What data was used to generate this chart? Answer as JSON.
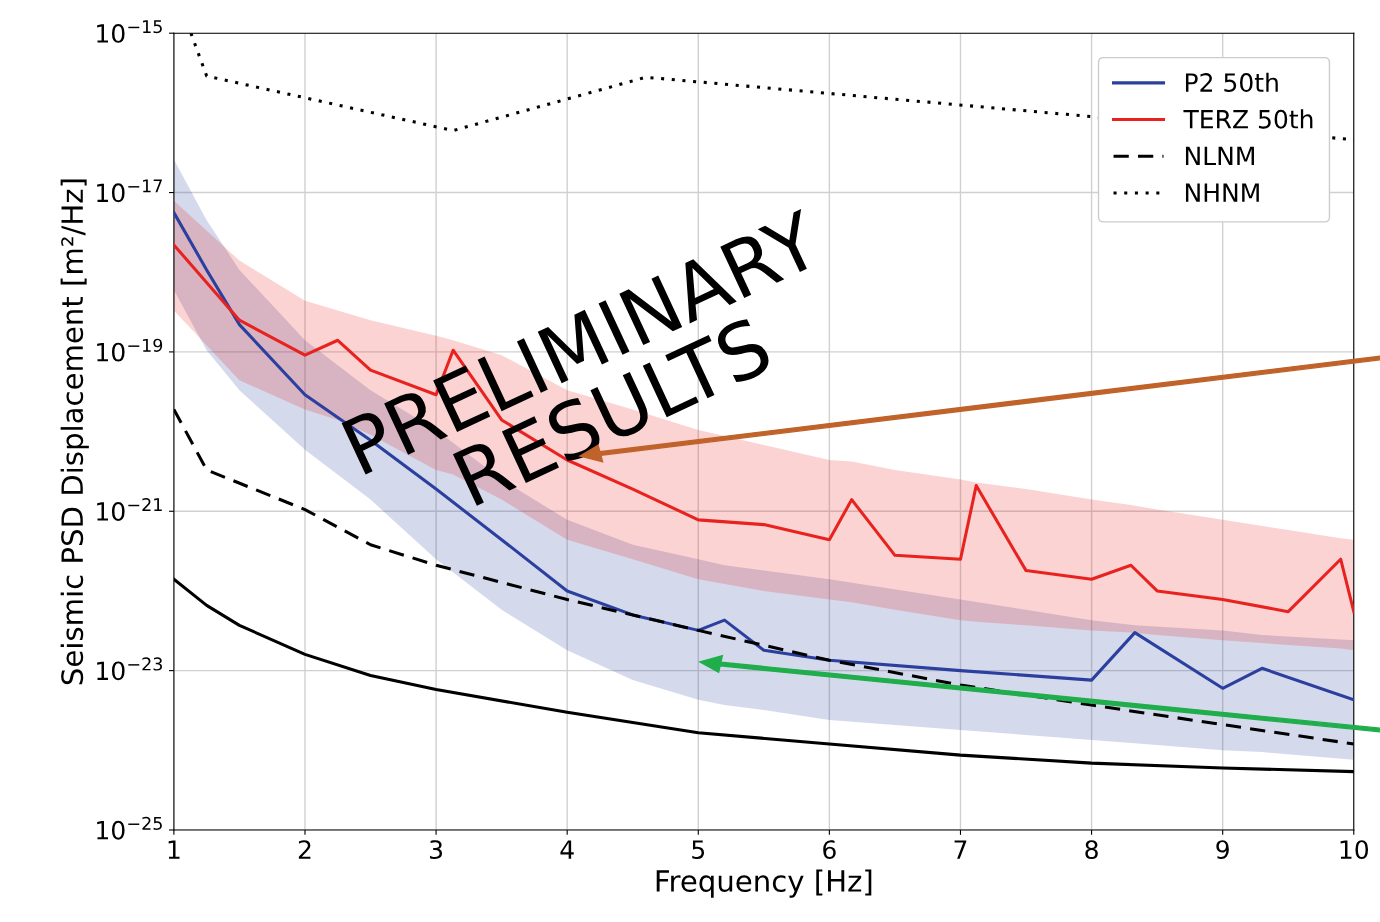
{
  "chart_data": {
    "type": "line",
    "xlabel": "Frequency [Hz]",
    "ylabel": "Seismic PSD Displacement [m²/Hz]",
    "log": "y",
    "xlim": [
      1,
      10
    ],
    "xticks": [
      1,
      2,
      3,
      4,
      5,
      6,
      7,
      8,
      9,
      10
    ],
    "ylim": [
      1e-25,
      1e-15
    ],
    "yticks": [
      {
        "value": 1e-25,
        "label": "10$^{−25}$"
      },
      {
        "value": 1e-23,
        "label": "10$^{−23}$"
      },
      {
        "value": 1e-21,
        "label": "10$^{−21}$"
      },
      {
        "value": 1e-19,
        "label": "10$^{−19}$"
      },
      {
        "value": 1e-17,
        "label": "10$^{−17}$"
      },
      {
        "value": 1e-15,
        "label": "10$^{−15}$"
      }
    ],
    "grid": true,
    "legend": "top right",
    "annotations": [
      "PRELIMINARY\nRESULTS"
    ],
    "series": [
      {
        "name": "P2 50th",
        "color": "#2b3f9e",
        "line_style": "solid",
        "x": [
          1,
          1.25,
          1.5,
          2,
          2.5,
          3,
          3.5,
          4,
          4.5,
          5,
          5.2,
          5.5,
          6,
          7,
          8,
          8.33,
          9,
          9.3,
          10
        ],
        "values": [
          5.6e-18,
          1.07e-18,
          2.2e-19,
          2.9e-20,
          7.8e-21,
          1.9e-21,
          4.4e-22,
          1e-22,
          5e-23,
          3.2e-23,
          4.3e-23,
          1.8e-23,
          1.35e-23,
          1e-23,
          7.6e-24,
          3e-23,
          6e-24,
          1.07e-23,
          4.3e-24
        ],
        "upper": [
          2.6e-17,
          4.5e-18,
          1.07e-18,
          1.4e-19,
          3.3e-20,
          1.05e-20,
          2.5e-21,
          7.8e-22,
          3.8e-22,
          2.5e-22,
          2.1e-22,
          1.8e-22,
          1.4e-22,
          7.8e-23,
          4.3e-23,
          3.7e-23,
          3.2e-23,
          2.8e-23,
          2.4e-23
        ],
        "lower": [
          6e-19,
          1.05e-19,
          3.3e-20,
          5.9e-21,
          1.4e-21,
          2.5e-22,
          5.8e-23,
          1.8e-23,
          7.6e-24,
          4.3e-24,
          3.7e-24,
          3.2e-24,
          2.4e-24,
          1.8e-24,
          1.35e-24,
          1.23e-24,
          1e-24,
          9.5e-25,
          7.6e-25
        ]
      },
      {
        "name": "TERZ 50th",
        "color": "#e8231f",
        "line_style": "solid",
        "x": [
          1,
          1.5,
          2,
          2.25,
          2.5,
          3,
          3.13,
          3.5,
          4,
          4.5,
          5,
          5.5,
          6,
          6.17,
          6.5,
          7,
          7.12,
          7.5,
          8,
          8.3,
          8.5,
          9,
          9.5,
          9.9,
          10
        ],
        "values": [
          2.2e-18,
          2.5e-19,
          9.1e-20,
          1.4e-19,
          5.9e-20,
          2.9e-20,
          1.05e-19,
          1.4e-20,
          4.4e-21,
          1.9e-21,
          7.8e-22,
          6.8e-22,
          4.4e-22,
          1.4e-21,
          2.8e-22,
          2.5e-22,
          2.1e-21,
          1.8e-22,
          1.4e-22,
          2.1e-22,
          1e-22,
          7.8e-23,
          5.5e-23,
          2.5e-22,
          5.5e-23
        ],
        "upper": [
          7.9e-18,
          1.4e-18,
          4.4e-19,
          3.3e-19,
          2.5e-19,
          1.6e-19,
          1.4e-19,
          9.1e-20,
          3.3e-20,
          1.9e-20,
          1.05e-20,
          6.8e-21,
          4.4e-21,
          4.2e-21,
          3.3e-21,
          2.5e-21,
          2.3e-21,
          1.9e-21,
          1.4e-21,
          1.2e-21,
          1.05e-21,
          7.8e-22,
          5.8e-22,
          4.6e-22,
          4.4e-22
        ],
        "lower": [
          3.3e-19,
          4.4e-20,
          1.9e-20,
          1.4e-20,
          9.1e-21,
          3.3e-21,
          2.9e-21,
          1.4e-21,
          4.4e-22,
          2.5e-22,
          1.4e-22,
          1e-22,
          7.8e-23,
          7.2e-23,
          5.8e-23,
          4.3e-23,
          4.1e-23,
          3.7e-23,
          3.2e-23,
          3e-23,
          2.8e-23,
          2.4e-23,
          2.1e-23,
          1.9e-23,
          1.8e-23
        ]
      },
      {
        "name": "NLNM",
        "color": "#000000",
        "line_style": "dashed",
        "x": [
          1,
          1.25,
          2,
          2.5,
          3,
          4,
          5,
          6,
          7,
          8,
          9,
          10
        ],
        "values": [
          1.9e-20,
          3.3e-21,
          1.05e-21,
          3.8e-22,
          2.1e-22,
          7.8e-23,
          3.2e-23,
          1.35e-23,
          6.6e-24,
          3.7e-24,
          2.1e-24,
          1.2e-24
        ]
      },
      {
        "name": "NHNM",
        "color": "#000000",
        "line_style": "dotted",
        "x": [
          1.13,
          1.25,
          3.13,
          4.6,
          10
        ],
        "values": [
          1e-15,
          2.9e-16,
          6e-17,
          2.8e-16,
          4.6e-17
        ]
      },
      {
        "color": "#000000",
        "line_style": "solid",
        "x": [
          1,
          1.25,
          1.5,
          2,
          2.5,
          3,
          4,
          5,
          6,
          7,
          8,
          9,
          10
        ],
        "values": [
          1.4e-22,
          6.6e-23,
          3.7e-23,
          1.6e-23,
          8.7e-24,
          5.8e-24,
          3e-24,
          1.66e-24,
          1.2e-24,
          8.7e-25,
          6.9e-25,
          6e-25,
          5.4e-25
        ]
      }
    ]
  }
}
